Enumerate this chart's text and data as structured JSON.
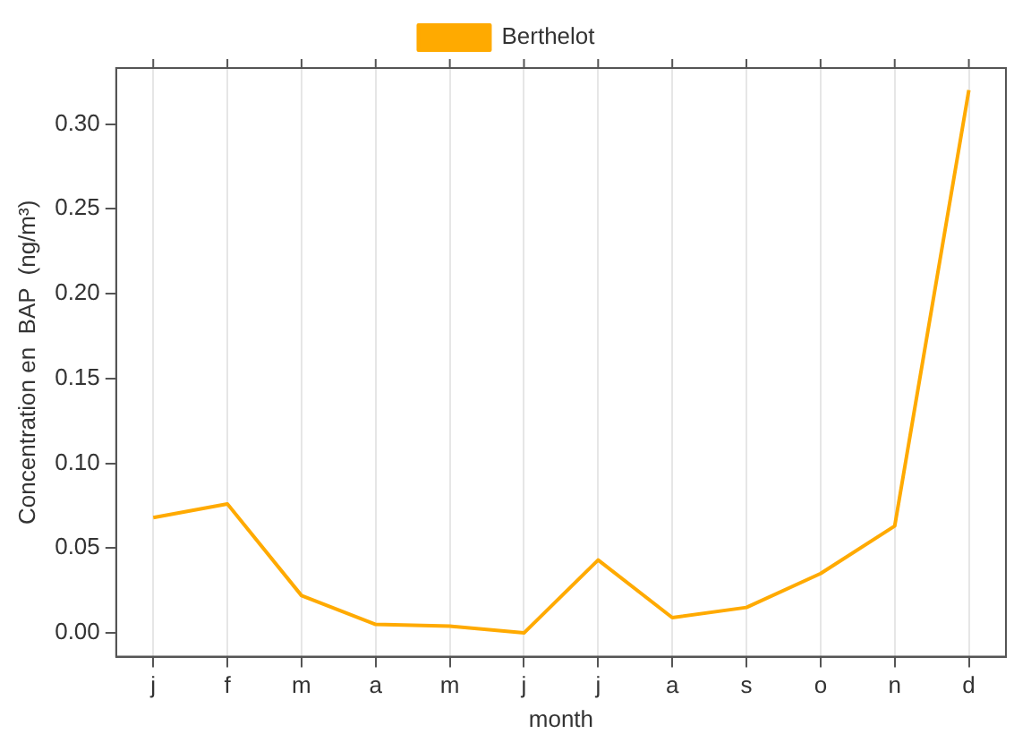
{
  "chart_data": {
    "type": "line",
    "xlabel": "month",
    "ylabel": "Concentration en  BAP  (ng/m³)",
    "categories": [
      "j",
      "f",
      "m",
      "a",
      "m",
      "j",
      "j",
      "a",
      "s",
      "o",
      "n",
      "d"
    ],
    "series": [
      {
        "name": "Berthelot",
        "color": "#ffaa00",
        "values": [
          0.068,
          0.076,
          0.022,
          0.005,
          0.004,
          0.0,
          0.043,
          0.009,
          0.015,
          0.035,
          0.063,
          0.32
        ]
      }
    ],
    "ylim": [
      -0.014,
      0.333
    ],
    "yticks": [
      {
        "value": 0,
        "label": "0.00"
      },
      {
        "value": 0.05,
        "label": "0.05"
      },
      {
        "value": 0.1,
        "label": "0.10"
      },
      {
        "value": 0.15,
        "label": "0.15"
      },
      {
        "value": 0.2,
        "label": "0.20"
      },
      {
        "value": 0.25,
        "label": "0.25"
      },
      {
        "value": 0.3,
        "label": "0.30"
      }
    ],
    "grid": "x",
    "legend": "top",
    "marker": "none",
    "line_style": "solid"
  }
}
